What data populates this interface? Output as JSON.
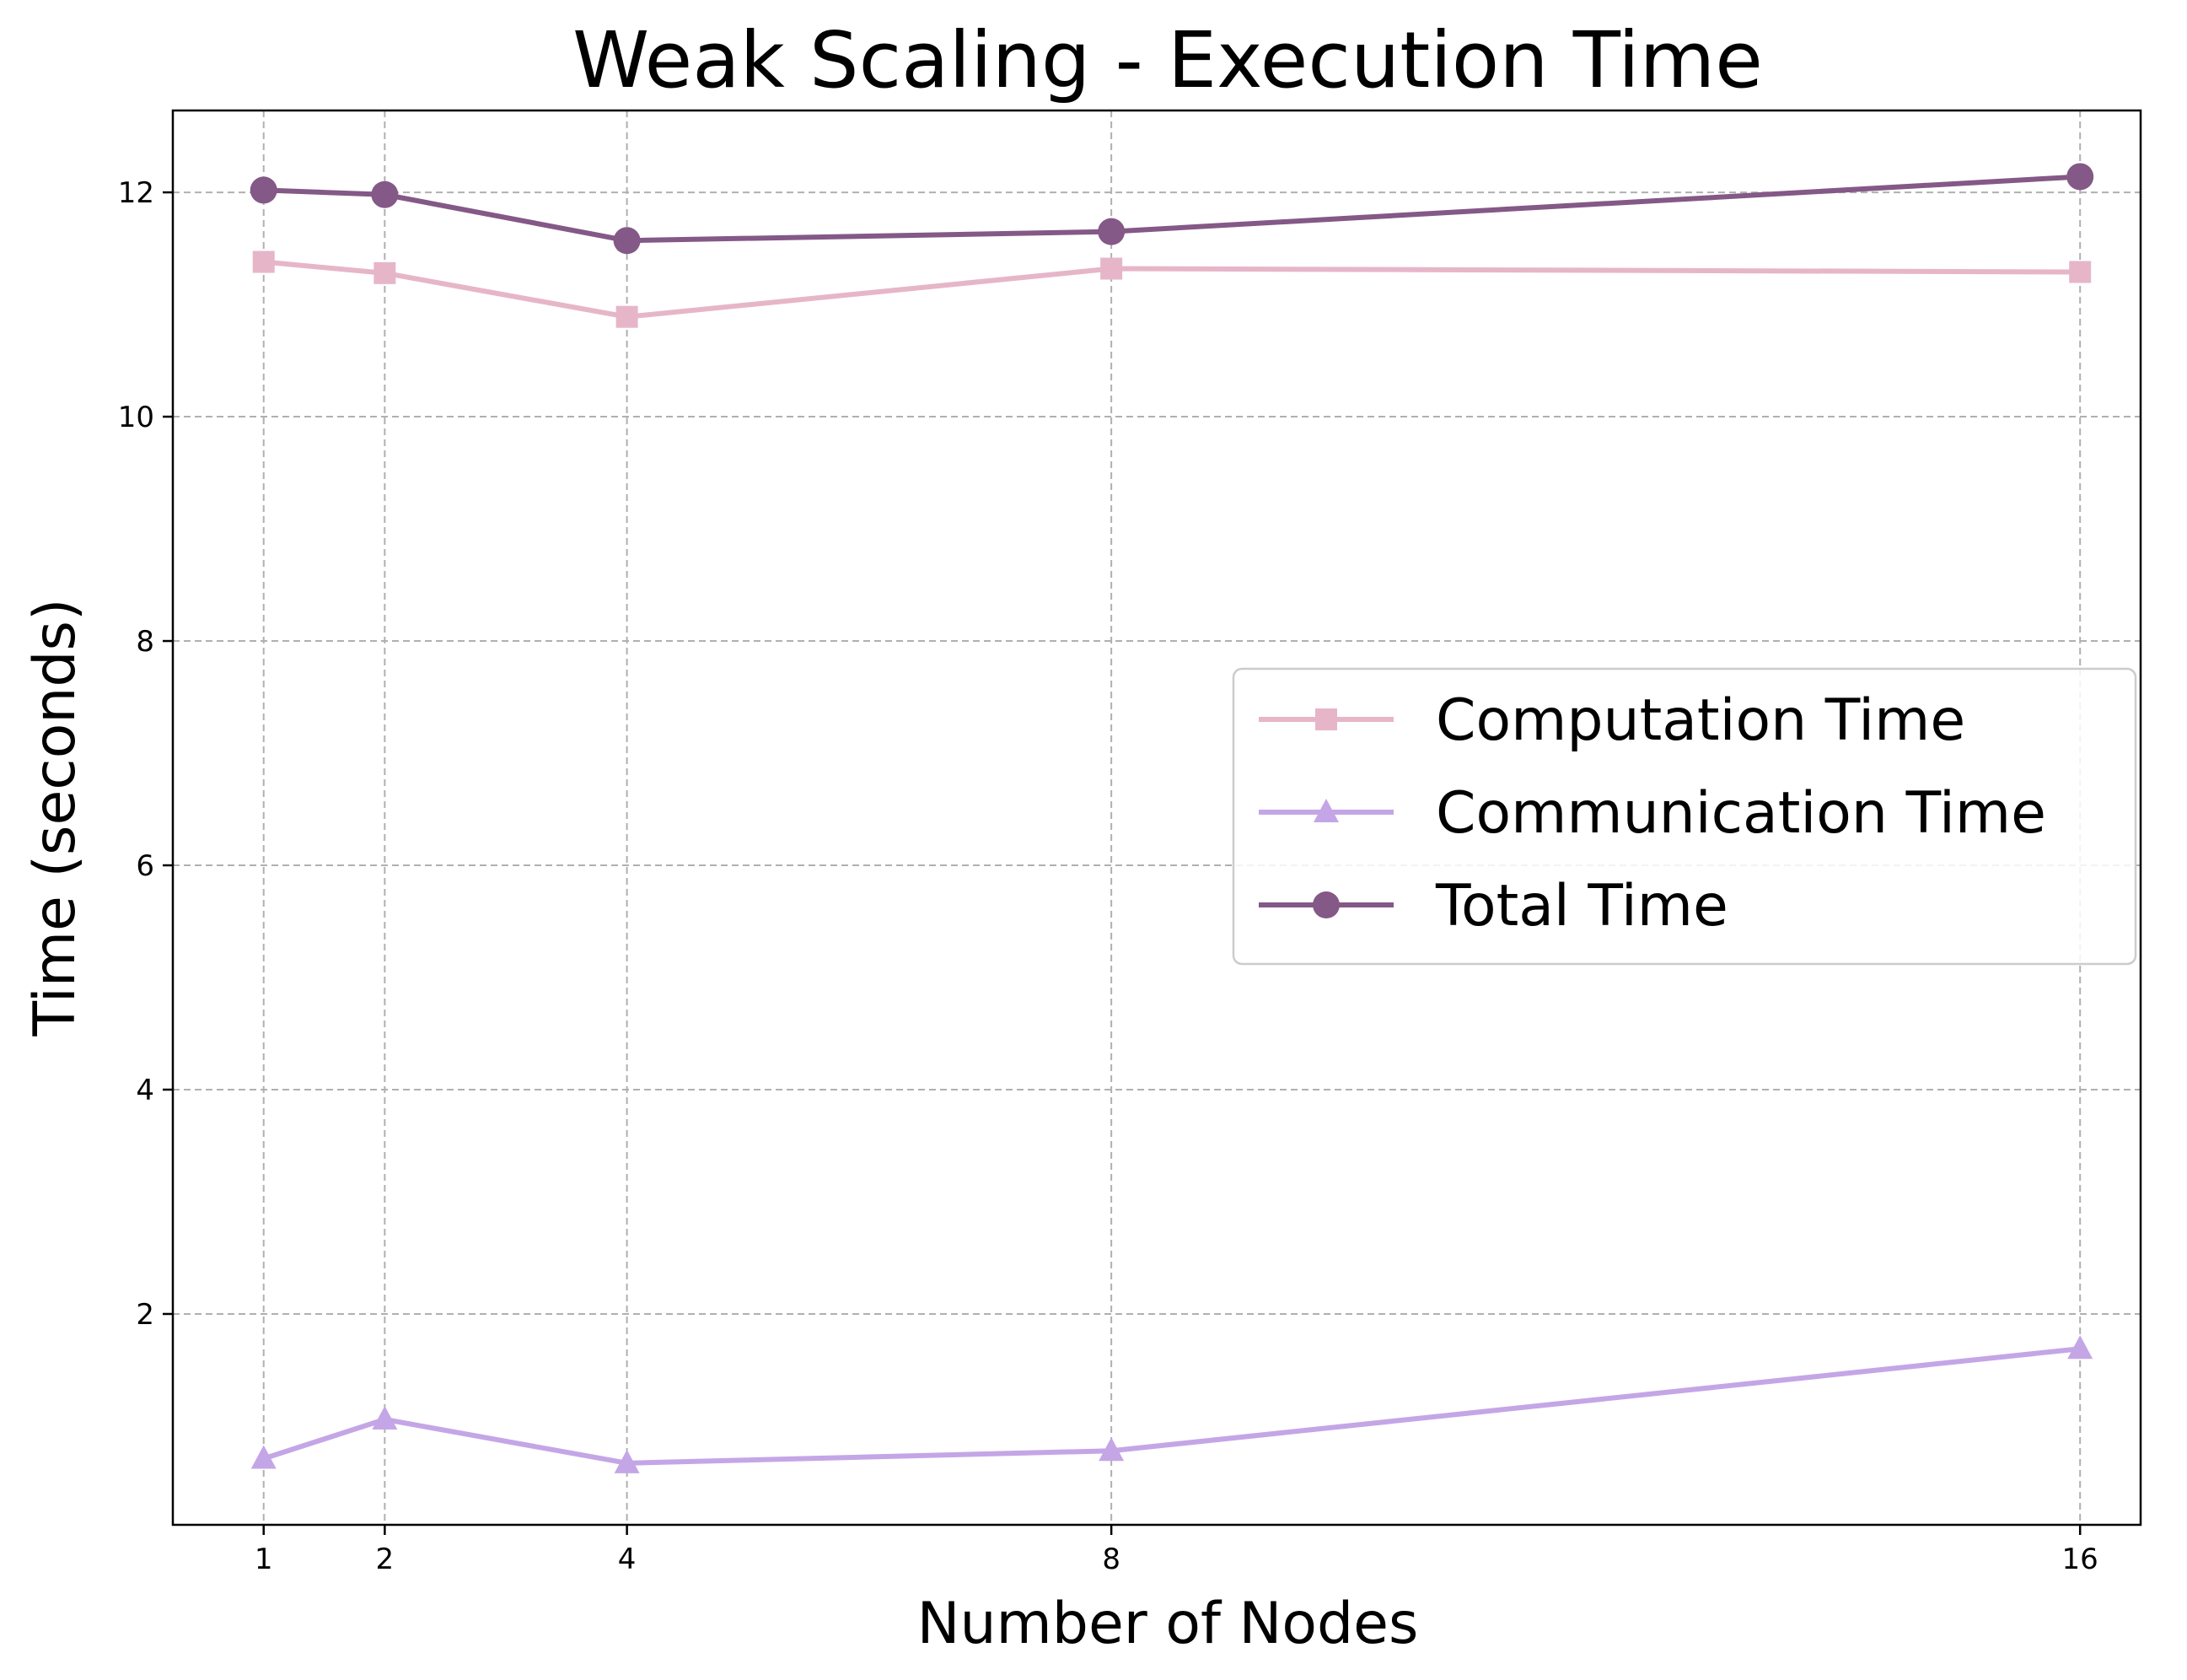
{
  "chart_data": {
    "type": "line",
    "title": "Weak Scaling - Execution Time",
    "xlabel": "Number of Nodes",
    "ylabel": "Time (seconds)",
    "x": [
      1,
      2,
      4,
      8,
      16
    ],
    "x_ticks": [
      "1",
      "2",
      "4",
      "8",
      "16"
    ],
    "y_ticks": [
      2,
      4,
      6,
      8,
      10,
      12
    ],
    "xlim": [
      0.25,
      16.5
    ],
    "ylim": [
      0.12,
      12.73
    ],
    "grid": true,
    "legend_position": "center-right",
    "series": [
      {
        "name": "Computation Time",
        "values": [
          11.38,
          11.28,
          10.89,
          11.32,
          11.29
        ],
        "color": "#e6b6c8",
        "marker": "square"
      },
      {
        "name": "Communication Time",
        "values": [
          0.71,
          1.06,
          0.67,
          0.78,
          1.69
        ],
        "color": "#c4a6e6",
        "marker": "triangle"
      },
      {
        "name": "Total Time",
        "values": [
          12.02,
          11.98,
          11.57,
          11.65,
          12.14
        ],
        "color": "#845887",
        "marker": "circle"
      }
    ]
  }
}
